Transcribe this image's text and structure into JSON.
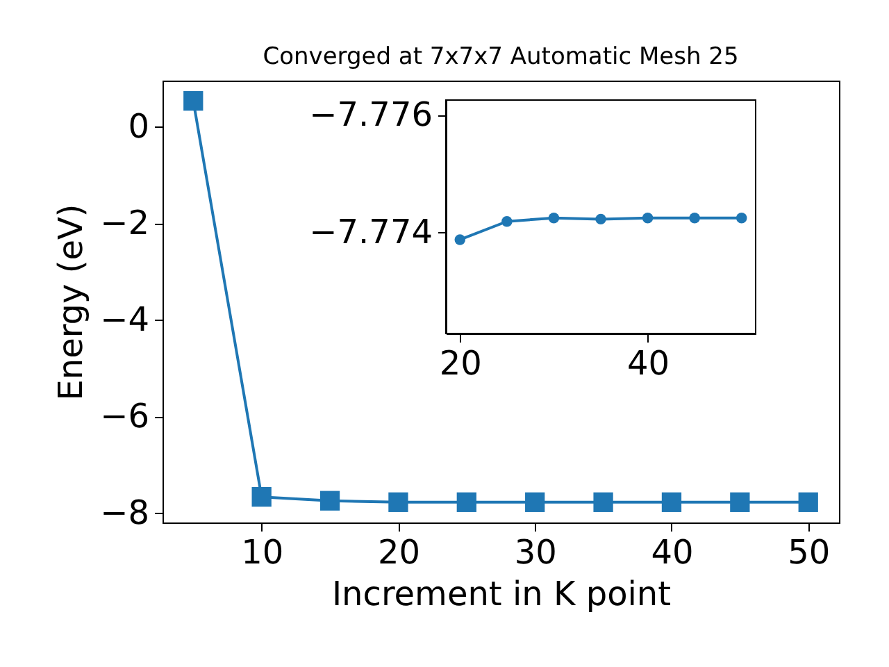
{
  "chart_data": [
    {
      "type": "line",
      "title": "Converged at 7x7x7 Automatic Mesh 25",
      "xlabel": "Increment in K point",
      "ylabel": "Energy (eV)",
      "x": [
        5,
        10,
        15,
        20,
        25,
        30,
        35,
        40,
        45,
        50
      ],
      "series": [
        {
          "color": "#1f77b4",
          "values": [
            0.54,
            -7.66,
            -7.74,
            -7.77,
            -7.77,
            -7.77,
            -7.77,
            -7.77,
            -7.77,
            -7.77
          ]
        }
      ],
      "xlim": [
        2.75,
        52.25
      ],
      "ylim": [
        -8.19,
        0.96
      ],
      "xticks": [
        10,
        20,
        30,
        40,
        50
      ],
      "yticks": [
        -8,
        -6,
        -4,
        -2,
        0
      ],
      "marker": "square",
      "grid": false
    },
    {
      "type": "line",
      "x": [
        20,
        25,
        30,
        35,
        40,
        45,
        50
      ],
      "series": [
        {
          "color": "#1f77b4",
          "values": [
            -7.77388,
            -7.77419,
            -7.77425,
            -7.77423,
            -7.77425,
            -7.77425,
            -7.77425
          ]
        }
      ],
      "xlim": [
        18.5,
        51.5
      ],
      "ylim": [
        -7.77228,
        -7.77626
      ],
      "xticks": [
        20,
        40
      ],
      "yticks": [
        -7.776,
        -7.774
      ],
      "marker": "circle",
      "grid": false
    }
  ]
}
